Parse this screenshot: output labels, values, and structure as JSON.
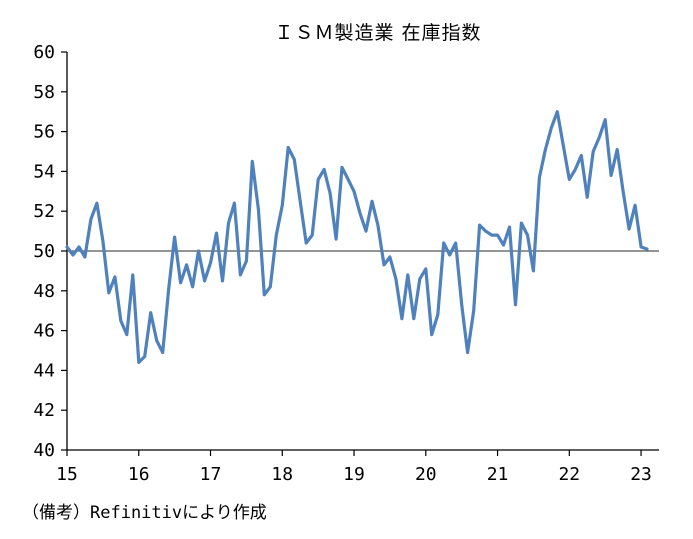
{
  "chart_data": {
    "type": "line",
    "title": "ＩＳＭ製造業 在庫指数",
    "xlabel": "",
    "ylabel": "",
    "ylim": [
      40,
      60
    ],
    "yticks": [
      "40",
      "42",
      "44",
      "46",
      "48",
      "50",
      "52",
      "54",
      "56",
      "58",
      "60"
    ],
    "xlim": [
      15,
      23.25
    ],
    "xticks": [
      "15",
      "16",
      "17",
      "18",
      "19",
      "20",
      "21",
      "22",
      "23"
    ],
    "reference_line": 50,
    "grid": false,
    "series": [
      {
        "name": "ISM製造業 在庫指数",
        "color": "#4f81bd",
        "x": [
          15.0,
          15.083,
          15.167,
          15.25,
          15.333,
          15.417,
          15.5,
          15.583,
          15.667,
          15.75,
          15.833,
          15.917,
          16.0,
          16.083,
          16.167,
          16.25,
          16.333,
          16.417,
          16.5,
          16.583,
          16.667,
          16.75,
          16.833,
          16.917,
          17.0,
          17.083,
          17.167,
          17.25,
          17.333,
          17.417,
          17.5,
          17.583,
          17.667,
          17.75,
          17.833,
          17.917,
          18.0,
          18.083,
          18.167,
          18.25,
          18.333,
          18.417,
          18.5,
          18.583,
          18.667,
          18.75,
          18.833,
          18.917,
          19.0,
          19.083,
          19.167,
          19.25,
          19.333,
          19.417,
          19.5,
          19.583,
          19.667,
          19.75,
          19.833,
          19.917,
          20.0,
          20.083,
          20.167,
          20.25,
          20.333,
          20.417,
          20.5,
          20.583,
          20.667,
          20.75,
          20.833,
          20.917,
          21.0,
          21.083,
          21.167,
          21.25,
          21.333,
          21.417,
          21.5,
          21.583,
          21.667,
          21.75,
          21.833,
          21.917,
          22.0,
          22.083,
          22.167,
          22.25,
          22.333,
          22.417,
          22.5,
          22.583,
          22.667,
          22.75,
          22.833,
          22.917,
          23.0,
          23.083
        ],
        "values": [
          50.2,
          49.8,
          50.2,
          49.7,
          51.6,
          52.4,
          50.5,
          47.9,
          48.7,
          46.5,
          45.8,
          48.8,
          44.4,
          44.7,
          46.9,
          45.5,
          44.9,
          48.1,
          50.7,
          48.4,
          49.3,
          48.2,
          50.0,
          48.5,
          49.4,
          50.9,
          48.5,
          51.4,
          52.4,
          48.8,
          49.5,
          54.5,
          52.1,
          47.8,
          48.2,
          50.8,
          52.3,
          55.2,
          54.6,
          52.5,
          50.4,
          50.8,
          53.6,
          54.1,
          52.9,
          50.6,
          54.2,
          53.6,
          53.0,
          51.9,
          51.0,
          52.5,
          51.3,
          49.3,
          49.7,
          48.6,
          46.6,
          48.8,
          46.6,
          48.6,
          49.1,
          45.8,
          46.8,
          50.4,
          49.8,
          50.4,
          47.3,
          44.9,
          47.0,
          51.3,
          51.0,
          50.8,
          50.8,
          50.3,
          51.2,
          47.3,
          51.4,
          50.8,
          49.0,
          53.7,
          55.1,
          56.2,
          57.0,
          55.3,
          53.6,
          54.1,
          54.8,
          52.7,
          55.0,
          55.7,
          56.6,
          53.8,
          55.1,
          53.0,
          51.1,
          52.3,
          50.2,
          50.1
        ]
      }
    ]
  },
  "source_note": "（備考）Refinitivにより作成"
}
